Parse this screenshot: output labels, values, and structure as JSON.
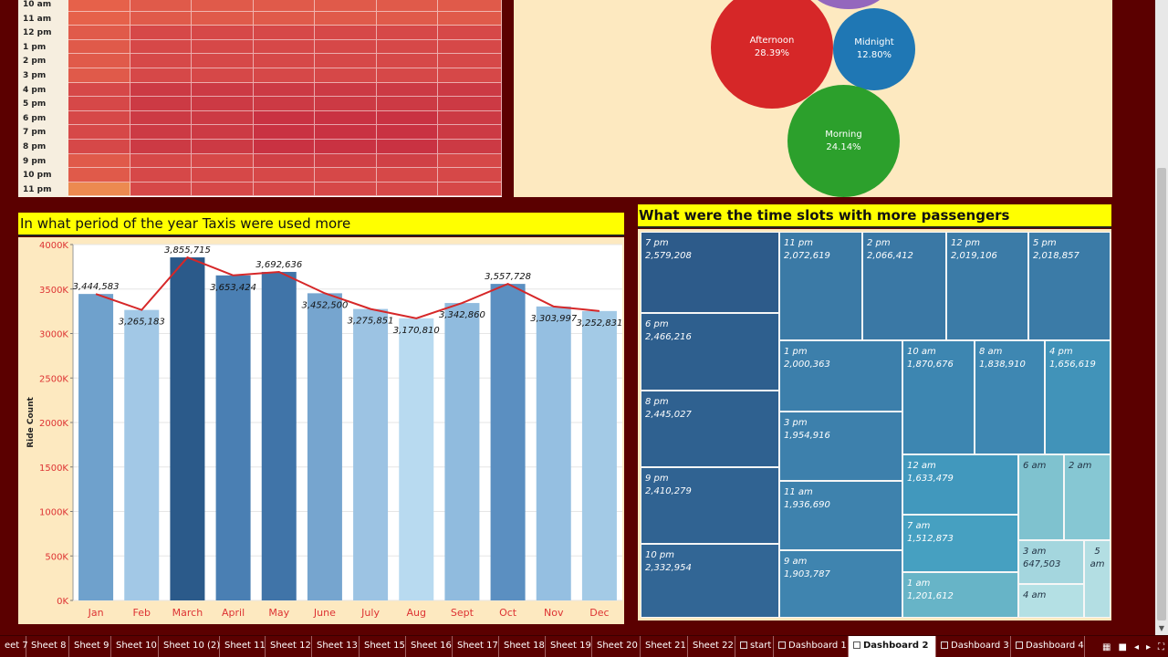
{
  "heatmap": {
    "hours": [
      "10 am",
      "11 am",
      "12 pm",
      "1 pm",
      "2 pm",
      "3 pm",
      "4 pm",
      "5 pm",
      "6 pm",
      "7 pm",
      "8 pm",
      "9 pm",
      "10 pm",
      "11 pm"
    ],
    "columns": 7
  },
  "bubbles": [
    {
      "label": "Afternoon",
      "value": "28.39%",
      "color": "#d62728"
    },
    {
      "label": "Midnight",
      "value": "12.80%",
      "color": "#1f77b4"
    },
    {
      "label": "Morning",
      "value": "24.14%",
      "color": "#2ca02c"
    },
    {
      "label": "",
      "value": "",
      "color": "#9467bd"
    }
  ],
  "bar_panel": {
    "title": "In what period of the year Taxis were used more"
  },
  "chart_data": [
    {
      "type": "bar",
      "title": "In what period of the year Taxis were used more",
      "categories": [
        "Jan",
        "Feb",
        "March",
        "April",
        "May",
        "June",
        "July",
        "Aug",
        "Sept",
        "Oct",
        "Nov",
        "Dec"
      ],
      "values": [
        3444583,
        3265183,
        3855715,
        3653424,
        3692636,
        3452500,
        3275851,
        3170810,
        3342860,
        3557728,
        3303997,
        3252831
      ],
      "value_labels": [
        "3,444,583",
        "3,265,183",
        "3,855,715",
        "3,653,424",
        "3,692,636",
        "3,452,500",
        "3,275,851",
        "3,170,810",
        "3,342,860",
        "3,557,728",
        "3,303,997",
        "3,252,831"
      ],
      "line_overlay": true,
      "ylabel": "Ride Count",
      "xlabel": "",
      "ylim": [
        0,
        4000000
      ],
      "yticks": [
        "0K",
        "500K",
        "1000K",
        "1500K",
        "2000K",
        "2500K",
        "3000K",
        "3500K",
        "4000K"
      ],
      "grid": true,
      "line_color": "#d62728"
    },
    {
      "type": "table",
      "title": "What were the time slots with more passengers",
      "cells": [
        {
          "label": "7 pm",
          "value": "2,579,208"
        },
        {
          "label": "6 pm",
          "value": "2,466,216"
        },
        {
          "label": "8 pm",
          "value": "2,445,027"
        },
        {
          "label": "9 pm",
          "value": "2,410,279"
        },
        {
          "label": "10 pm",
          "value": "2,332,954"
        },
        {
          "label": "11 pm",
          "value": "2,072,619"
        },
        {
          "label": "2 pm",
          "value": "2,066,412"
        },
        {
          "label": "12 pm",
          "value": "2,019,106"
        },
        {
          "label": "5 pm",
          "value": "2,018,857"
        },
        {
          "label": "1 pm",
          "value": "2,000,363"
        },
        {
          "label": "10 am",
          "value": "1,870,676"
        },
        {
          "label": "8 am",
          "value": "1,838,910"
        },
        {
          "label": "4 pm",
          "value": "1,656,619"
        },
        {
          "label": "3 pm",
          "value": "1,954,916"
        },
        {
          "label": "12 am",
          "value": "1,633,479"
        },
        {
          "label": "6 am",
          "value": ""
        },
        {
          "label": "2 am",
          "value": ""
        },
        {
          "label": "11 am",
          "value": "1,936,690"
        },
        {
          "label": "7 am",
          "value": "1,512,873"
        },
        {
          "label": "3 am",
          "value": "647,503"
        },
        {
          "label": "5 am",
          "value": ""
        },
        {
          "label": "9 am",
          "value": "1,903,787"
        },
        {
          "label": "1 am",
          "value": "1,201,612"
        },
        {
          "label": "4 am",
          "value": ""
        }
      ]
    }
  ],
  "treemap": {
    "title": "What were the time slots with more passengers"
  },
  "tabs": [
    "eet 7",
    "Sheet 8",
    "Sheet 9",
    "Sheet 10",
    "Sheet 10 (2)",
    "Sheet 11",
    "Sheet 12",
    "Sheet 13",
    "Sheet 15",
    "Sheet 16",
    "Sheet 17",
    "Sheet 18",
    "Sheet 19",
    "Sheet 20",
    "Sheet 21",
    "Sheet 22",
    "start",
    "Dashboard 1",
    "Dashboard 2",
    "Dashboard 3",
    "Dashboard 4"
  ],
  "active_tab": "Dashboard 2"
}
